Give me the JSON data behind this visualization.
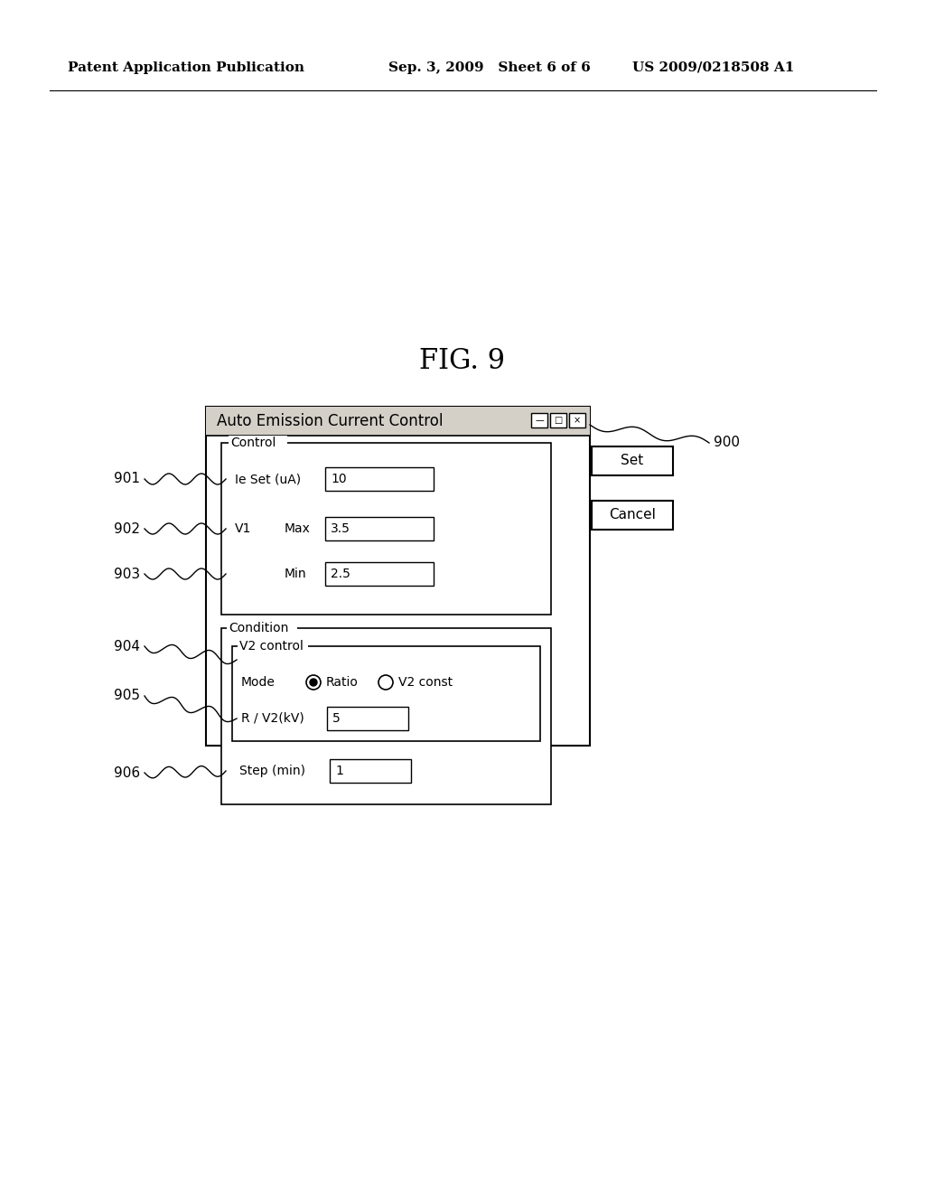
{
  "background_color": "#ffffff",
  "header_left": "Patent Application Publication",
  "header_mid": "Sep. 3, 2009   Sheet 6 of 6",
  "header_right": "US 2009/0218508 A1",
  "fig_label": "FIG. 9",
  "dialog_title": "Auto Emission Current Control",
  "label_900": "900",
  "label_901": "901",
  "label_902": "902",
  "label_903": "903",
  "label_904": "904",
  "label_905": "905",
  "label_906": "906"
}
